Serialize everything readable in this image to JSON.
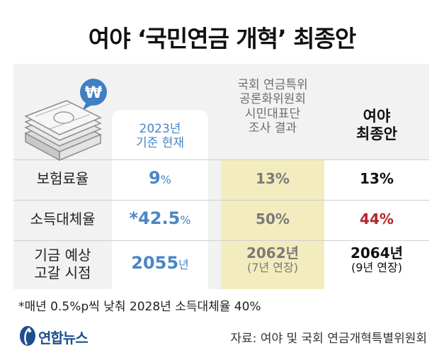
{
  "title": "여야 ‘국민연금 개혁’ 최종안",
  "icon_badge": "₩",
  "columns": {
    "current": [
      "2023년",
      "기준 현재"
    ],
    "citizen": [
      "국회 연금특위",
      "공론화위원회",
      "시민대표단",
      "조사 결과"
    ],
    "final": [
      "여야",
      "최종안"
    ]
  },
  "rows": [
    {
      "label": [
        "보험료율"
      ],
      "current": {
        "value": "9",
        "unit": "%"
      },
      "citizen": {
        "value": "13",
        "unit": "%"
      },
      "final": {
        "value": "13",
        "unit": "%"
      }
    },
    {
      "label": [
        "소득대체율"
      ],
      "current": {
        "value": "*42.5",
        "unit": "%"
      },
      "citizen": {
        "value": "50",
        "unit": "%"
      },
      "final": {
        "value": "44",
        "unit": "%"
      }
    },
    {
      "label": [
        "기금 예상",
        "고갈 시점"
      ],
      "current": {
        "value": "2055",
        "unit": "년"
      },
      "citizen": {
        "value": "2062",
        "unit": "년",
        "note": "(7년 연장)"
      },
      "final": {
        "value": "2064",
        "unit": "년",
        "note": "(9년 연장)"
      }
    }
  ],
  "footnote": "*매년 0.5%p씩 낮춰 2028년 소득대체율 40%",
  "logo": "연합뉴스",
  "source": "자료: 여야 및 국회 연금개혁특별위원회",
  "colors": {
    "current": "#4a86c5",
    "citizen_bg": "#f3ecbe",
    "highlight_red": "#b3242c",
    "panel_bg": "#f2f2f2"
  }
}
